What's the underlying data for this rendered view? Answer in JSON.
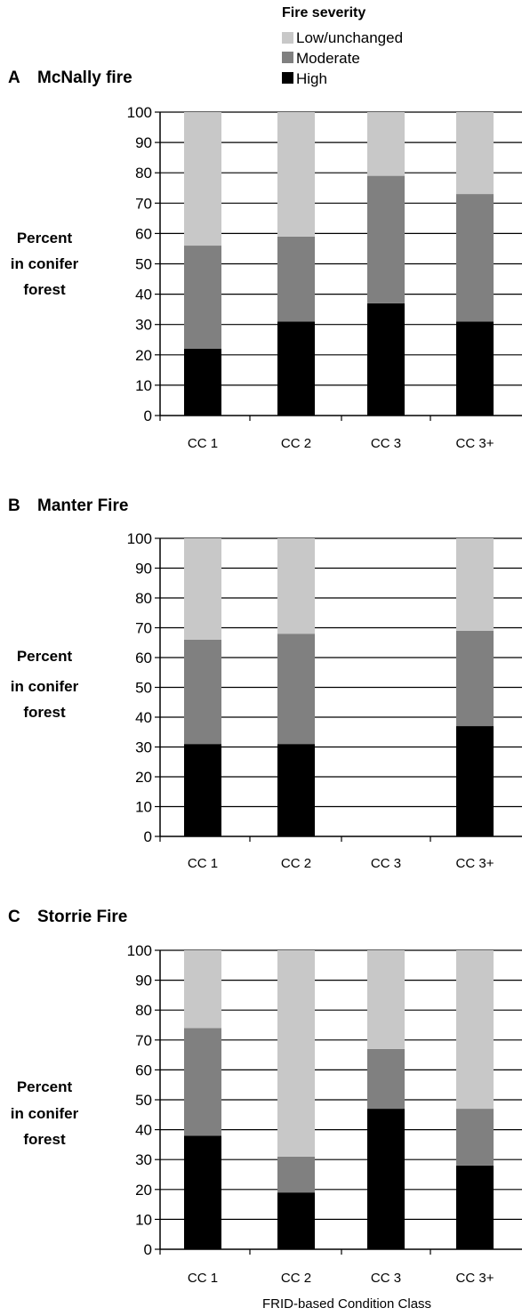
{
  "legend": {
    "title": "Fire severity",
    "entries": [
      {
        "label": "Low/unchanged",
        "color": "#c8c8c8"
      },
      {
        "label": "Moderate",
        "color": "#808080"
      },
      {
        "label": "High",
        "color": "#000000"
      }
    ]
  },
  "x_title": "FRID-based Condition Class",
  "chart_data": [
    {
      "type": "bar",
      "stacked": true,
      "panel_letter": "A",
      "title": "McNally fire",
      "ylabel": "Percent in conifer forest",
      "ylabel_lines": [
        "Percent",
        "in conifer",
        "forest"
      ],
      "ylim": [
        0,
        100
      ],
      "yticks": [
        0,
        10,
        20,
        30,
        40,
        50,
        60,
        70,
        80,
        90,
        100
      ],
      "grid": true,
      "categories": [
        "CC 1",
        "CC 2",
        "CC 3",
        "CC 3+"
      ],
      "series": [
        {
          "name": "High",
          "values": [
            22,
            31,
            37,
            31
          ]
        },
        {
          "name": "Moderate",
          "values": [
            34,
            28,
            42,
            42
          ]
        },
        {
          "name": "Low/unchanged",
          "values": [
            44,
            41,
            21,
            27
          ]
        }
      ]
    },
    {
      "type": "bar",
      "stacked": true,
      "panel_letter": "B",
      "title": "Manter Fire",
      "ylabel": "Percent in conifer forest",
      "ylabel_lines": [
        "Percent",
        "in conifer",
        "forest"
      ],
      "ylim": [
        0,
        100
      ],
      "yticks": [
        0,
        10,
        20,
        30,
        40,
        50,
        60,
        70,
        80,
        90,
        100
      ],
      "grid": true,
      "categories": [
        "CC 1",
        "CC 2",
        "CC 3",
        "CC 3+"
      ],
      "series": [
        {
          "name": "High",
          "values": [
            31,
            31,
            0,
            37
          ]
        },
        {
          "name": "Moderate",
          "values": [
            35,
            37,
            0,
            32
          ]
        },
        {
          "name": "Low/unchanged",
          "values": [
            34,
            32,
            0,
            31
          ]
        }
      ]
    },
    {
      "type": "bar",
      "stacked": true,
      "panel_letter": "C",
      "title": "Storrie Fire",
      "ylabel": "Percent in conifer forest",
      "ylabel_lines": [
        "Percent",
        "in conifer",
        "forest"
      ],
      "ylim": [
        0,
        100
      ],
      "yticks": [
        0,
        10,
        20,
        30,
        40,
        50,
        60,
        70,
        80,
        90,
        100
      ],
      "grid": true,
      "categories": [
        "CC 1",
        "CC 2",
        "CC 3",
        "CC 3+"
      ],
      "series": [
        {
          "name": "High",
          "values": [
            38,
            19,
            47,
            28
          ]
        },
        {
          "name": "Moderate",
          "values": [
            36,
            12,
            20,
            19
          ]
        },
        {
          "name": "Low/unchanged",
          "values": [
            26,
            69,
            33,
            53
          ]
        }
      ]
    }
  ]
}
